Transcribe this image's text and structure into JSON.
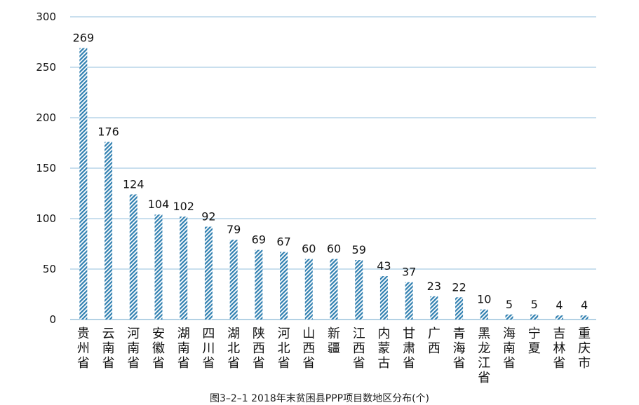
{
  "caption": "图3–2–1  2018年末贫困县PPP项目数地区分布(个)",
  "colors": {
    "bar": "#2f7fb0",
    "grid": "#a9cce4",
    "axis": "#9ac2dc"
  },
  "chart_data": {
    "type": "bar",
    "title": "",
    "xlabel": "",
    "ylabel": "",
    "ylim": [
      0,
      300
    ],
    "yticks": [
      0,
      50,
      100,
      150,
      200,
      250,
      300
    ],
    "grid": true,
    "bar_pattern": "diagonal-hatch",
    "categories": [
      "贵州省",
      "云南省",
      "河南省",
      "安徽省",
      "湖南省",
      "四川省",
      "湖北省",
      "陕西省",
      "河北省",
      "山西省",
      "新疆",
      "江西省",
      "内蒙古",
      "甘肃省",
      "广西",
      "青海省",
      "黑龙江省",
      "海南省",
      "宁夏",
      "吉林省",
      "重庆市"
    ],
    "values": [
      269,
      176,
      124,
      104,
      102,
      92,
      79,
      69,
      67,
      60,
      60,
      59,
      43,
      37,
      23,
      22,
      10,
      5,
      5,
      4,
      4
    ]
  }
}
